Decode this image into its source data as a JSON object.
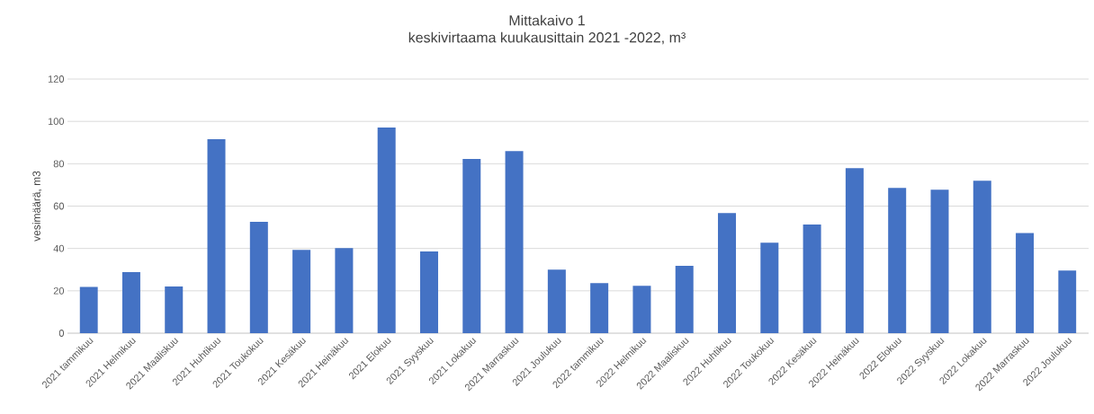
{
  "chart_data": {
    "type": "bar",
    "title": "Mittakaivo 1",
    "subtitle": "keskivirtaama  kuukausittain 2021 -2022, m³",
    "ylabel": "vesimäärä, m3",
    "categories": [
      "2021 tammikuu",
      "2021 Helmikuu",
      "2021 Maaliskuu",
      "2021 Huhtikuu",
      "2021 Toukokuu",
      "2021 Kesäkuu",
      "2021 Heinäkuu",
      "2021 Elokuu",
      "2021 Syyskuu",
      "2021 Lokakuu",
      "2021 Marraskuu",
      "2021 Joulukuu",
      "2022 tammikuu",
      "2022 Helmikuu",
      "2022 Maaliskuu",
      "2022 Huhtikuu",
      "2022 Toukokuu",
      "2022 Kesäkuu",
      "2022 Heinäkuu",
      "2022 Elokuu",
      "2022 Syyskuu",
      "2022 Lokakuu",
      "2022 Marraskuu",
      "2022 Joulukuu"
    ],
    "values": [
      21.8,
      28.8,
      22.1,
      91.6,
      52.6,
      39.3,
      40.2,
      97.1,
      38.6,
      82.3,
      86.0,
      30.0,
      23.6,
      22.4,
      31.8,
      56.7,
      42.7,
      51.3,
      77.9,
      68.6,
      67.7,
      72.0,
      47.3,
      29.6
    ],
    "color": "#4472c4",
    "ylim": [
      0,
      120
    ],
    "yticks": [
      0,
      20,
      40,
      60,
      80,
      100,
      120
    ],
    "grid": "y"
  }
}
